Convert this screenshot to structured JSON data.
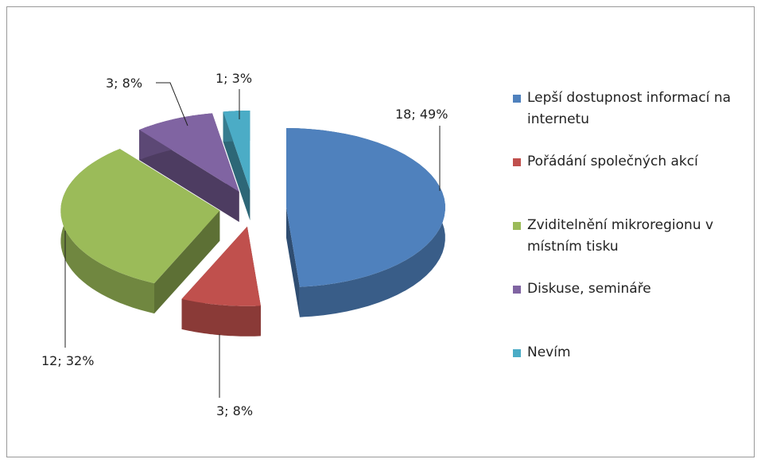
{
  "chart_data": {
    "type": "pie",
    "categories": [
      "Lepší dostupnost informací na internetu",
      "Pořádání společných akcí",
      "Zviditelnění mikroregionu v místním  tisku",
      "Diskuse, semináře",
      "Nevím"
    ],
    "values": [
      18,
      3,
      12,
      3,
      1
    ],
    "value_labels": [
      "18; 49%",
      "3; 8%",
      "12; 32%",
      "3; 8%",
      "1; 3%"
    ],
    "colors": [
      "#4f81bd",
      "#c0504d",
      "#9bbb59",
      "#8064a2",
      "#4bacc6"
    ],
    "legend": "right"
  }
}
